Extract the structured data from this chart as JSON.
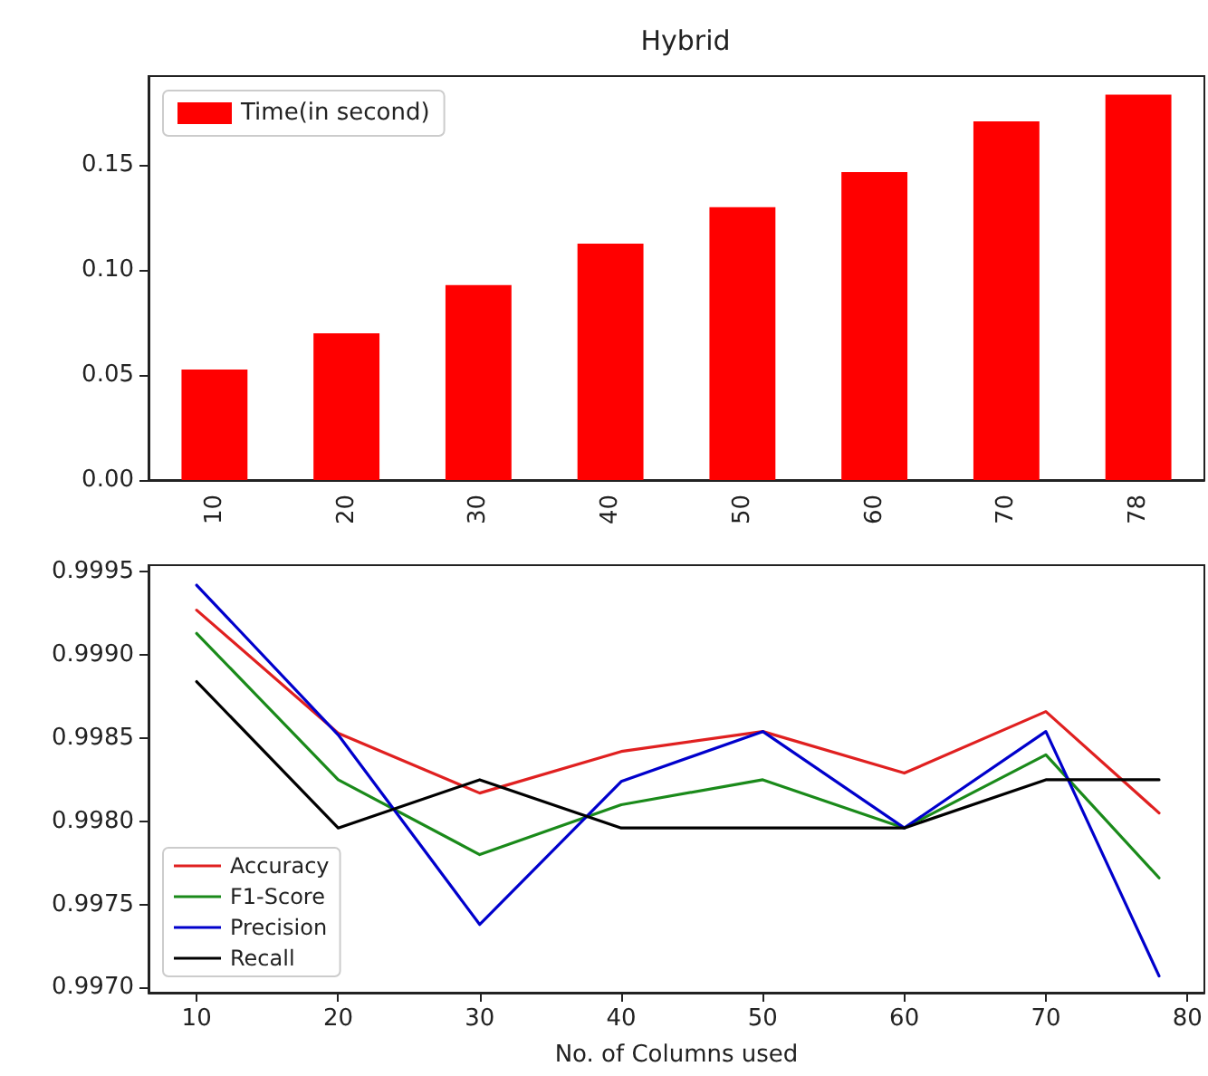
{
  "chart_data": [
    {
      "type": "bar",
      "title": "Hybrid",
      "categories": [
        "10",
        "20",
        "30",
        "40",
        "50",
        "60",
        "70",
        "78"
      ],
      "series": [
        {
          "name": "Time(in second)",
          "color": "#ff0000",
          "values": [
            0.0527,
            0.0699,
            0.0929,
            0.1127,
            0.13,
            0.1467,
            0.1709,
            0.1837
          ]
        }
      ],
      "ylim": [
        0,
        0.1925
      ],
      "yticks": [
        {
          "value": 0,
          "label": "0.00"
        },
        {
          "value": 0.05,
          "label": "0.05"
        },
        {
          "value": 0.1,
          "label": "0.10"
        },
        {
          "value": 0.15,
          "label": "0.15"
        }
      ],
      "grid": false,
      "legend": "top left"
    },
    {
      "type": "line",
      "xlabel": "No. of Columns used",
      "x": [
        10,
        20,
        30,
        40,
        50,
        60,
        70,
        78
      ],
      "series": [
        {
          "name": "Accuracy",
          "color": "#e02020",
          "values": [
            0.99927,
            0.99853,
            0.99817,
            0.99842,
            0.99854,
            0.99829,
            0.99866,
            0.99805
          ]
        },
        {
          "name": "F1-Score",
          "color": "#1a8a1a",
          "values": [
            0.99913,
            0.99825,
            0.9978,
            0.9981,
            0.99825,
            0.99796,
            0.9984,
            0.99766
          ]
        },
        {
          "name": "Precision",
          "color": "#0000cc",
          "values": [
            0.99942,
            0.99852,
            0.99738,
            0.99824,
            0.99854,
            0.99796,
            0.99854,
            0.99707
          ]
        },
        {
          "name": "Recall",
          "color": "#000000",
          "values": [
            0.99884,
            0.99796,
            0.99825,
            0.99796,
            0.99796,
            0.99796,
            0.99825,
            0.99825
          ]
        }
      ],
      "xlim": [
        6.6,
        81.2
      ],
      "xticks": [
        10,
        20,
        30,
        40,
        50,
        60,
        70,
        80
      ],
      "ylim": [
        0.99697,
        0.99954
      ],
      "yticks": [
        {
          "value": 0.997,
          "label": "0.9970"
        },
        {
          "value": 0.9975,
          "label": "0.9975"
        },
        {
          "value": 0.998,
          "label": "0.9980"
        },
        {
          "value": 0.9985,
          "label": "0.9985"
        },
        {
          "value": 0.999,
          "label": "0.9990"
        },
        {
          "value": 0.9995,
          "label": "0.9995"
        }
      ],
      "grid": false,
      "legend": "center left",
      "marker": "none",
      "line_style": "solid"
    }
  ]
}
